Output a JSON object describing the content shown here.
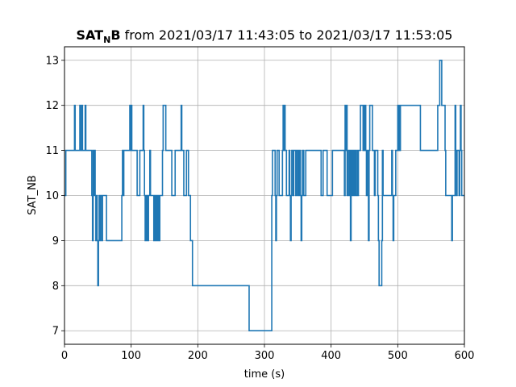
{
  "chart_data": {
    "type": "line",
    "line_style": "step",
    "title": {
      "name_main": "SAT",
      "name_sub": "N",
      "name_end": "B",
      "range": " from 2021/03/17 11:43:05 to 2021/03/17 11:53:05"
    },
    "xlabel": "time (s)",
    "ylabel": "SAT_NB",
    "xlim": [
      0,
      600
    ],
    "ylim": [
      6.7,
      13.3
    ],
    "xticks": [
      0,
      100,
      200,
      300,
      400,
      500,
      600
    ],
    "yticks": [
      7,
      8,
      9,
      10,
      11,
      12,
      13
    ],
    "grid": true,
    "line_color": "#1f77b4",
    "series": [
      {
        "points": [
          [
            0,
            10
          ],
          [
            2,
            11
          ],
          [
            14,
            11
          ],
          [
            15,
            12
          ],
          [
            16,
            11
          ],
          [
            22,
            11
          ],
          [
            23,
            12
          ],
          [
            24,
            11
          ],
          [
            26,
            12
          ],
          [
            27,
            11
          ],
          [
            30,
            11
          ],
          [
            31,
            12
          ],
          [
            32,
            11
          ],
          [
            40,
            11
          ],
          [
            41,
            10
          ],
          [
            42,
            9
          ],
          [
            43,
            11
          ],
          [
            44,
            10
          ],
          [
            45,
            11
          ],
          [
            46,
            10
          ],
          [
            47,
            9
          ],
          [
            48,
            10
          ],
          [
            49,
            9
          ],
          [
            50,
            8
          ],
          [
            51,
            9
          ],
          [
            52,
            10
          ],
          [
            53,
            9
          ],
          [
            54,
            10
          ],
          [
            56,
            9
          ],
          [
            57,
            10
          ],
          [
            62,
            10
          ],
          [
            63,
            9
          ],
          [
            85,
            9
          ],
          [
            86,
            10
          ],
          [
            87,
            11
          ],
          [
            88,
            10
          ],
          [
            89,
            11
          ],
          [
            97,
            11
          ],
          [
            98,
            12
          ],
          [
            99,
            11
          ],
          [
            100,
            12
          ],
          [
            101,
            11
          ],
          [
            108,
            11
          ],
          [
            109,
            10
          ],
          [
            112,
            10
          ],
          [
            113,
            11
          ],
          [
            117,
            11
          ],
          [
            118,
            12
          ],
          [
            119,
            11
          ],
          [
            120,
            10
          ],
          [
            121,
            9
          ],
          [
            122,
            10
          ],
          [
            123,
            9
          ],
          [
            124,
            10
          ],
          [
            125,
            9
          ],
          [
            126,
            10
          ],
          [
            128,
            11
          ],
          [
            129,
            10
          ],
          [
            133,
            10
          ],
          [
            134,
            9
          ],
          [
            135,
            10
          ],
          [
            136,
            9
          ],
          [
            137,
            10
          ],
          [
            138,
            9
          ],
          [
            139,
            10
          ],
          [
            140,
            9
          ],
          [
            141,
            10
          ],
          [
            142,
            9
          ],
          [
            143,
            10
          ],
          [
            146,
            10
          ],
          [
            147,
            11
          ],
          [
            148,
            12
          ],
          [
            151,
            12
          ],
          [
            152,
            11
          ],
          [
            160,
            11
          ],
          [
            161,
            10
          ],
          [
            165,
            10
          ],
          [
            166,
            11
          ],
          [
            174,
            11
          ],
          [
            175,
            12
          ],
          [
            176,
            11
          ],
          [
            178,
            11
          ],
          [
            179,
            10
          ],
          [
            182,
            10
          ],
          [
            183,
            11
          ],
          [
            185,
            11
          ],
          [
            186,
            10
          ],
          [
            188,
            10
          ],
          [
            189,
            9
          ],
          [
            191,
            9
          ],
          [
            192,
            8
          ],
          [
            276,
            8
          ],
          [
            277,
            7
          ],
          [
            310,
            7
          ],
          [
            311,
            10
          ],
          [
            312,
            11
          ],
          [
            315,
            11
          ],
          [
            316,
            10
          ],
          [
            317,
            9
          ],
          [
            318,
            10
          ],
          [
            319,
            11
          ],
          [
            321,
            11
          ],
          [
            322,
            10
          ],
          [
            326,
            10
          ],
          [
            327,
            11
          ],
          [
            328,
            12
          ],
          [
            329,
            11
          ],
          [
            330,
            12
          ],
          [
            331,
            11
          ],
          [
            333,
            10
          ],
          [
            336,
            10
          ],
          [
            337,
            11
          ],
          [
            338,
            10
          ],
          [
            339,
            9
          ],
          [
            340,
            10
          ],
          [
            341,
            11
          ],
          [
            343,
            10
          ],
          [
            344,
            11
          ],
          [
            346,
            11
          ],
          [
            347,
            10
          ],
          [
            348,
            11
          ],
          [
            350,
            10
          ],
          [
            351,
            11
          ],
          [
            352,
            10
          ],
          [
            353,
            11
          ],
          [
            354,
            10
          ],
          [
            355,
            9
          ],
          [
            356,
            10
          ],
          [
            357,
            11
          ],
          [
            359,
            10
          ],
          [
            361,
            10
          ],
          [
            362,
            11
          ],
          [
            384,
            11
          ],
          [
            385,
            10
          ],
          [
            387,
            10
          ],
          [
            388,
            11
          ],
          [
            393,
            11
          ],
          [
            394,
            10
          ],
          [
            401,
            10
          ],
          [
            402,
            11
          ],
          [
            419,
            11
          ],
          [
            420,
            10
          ],
          [
            421,
            12
          ],
          [
            422,
            11
          ],
          [
            423,
            12
          ],
          [
            424,
            10
          ],
          [
            425,
            11
          ],
          [
            426,
            10
          ],
          [
            428,
            11
          ],
          [
            429,
            9
          ],
          [
            430,
            11
          ],
          [
            431,
            10
          ],
          [
            432,
            11
          ],
          [
            433,
            10
          ],
          [
            434,
            11
          ],
          [
            435,
            10
          ],
          [
            436,
            11
          ],
          [
            437,
            10
          ],
          [
            439,
            11
          ],
          [
            440,
            10
          ],
          [
            441,
            11
          ],
          [
            443,
            11
          ],
          [
            444,
            12
          ],
          [
            447,
            12
          ],
          [
            448,
            11
          ],
          [
            449,
            12
          ],
          [
            450,
            11
          ],
          [
            451,
            12
          ],
          [
            452,
            11
          ],
          [
            453,
            10
          ],
          [
            454,
            11
          ],
          [
            455,
            10
          ],
          [
            456,
            9
          ],
          [
            457,
            11
          ],
          [
            458,
            12
          ],
          [
            461,
            12
          ],
          [
            462,
            11
          ],
          [
            464,
            11
          ],
          [
            465,
            10
          ],
          [
            466,
            11
          ],
          [
            469,
            11
          ],
          [
            470,
            10
          ],
          [
            471,
            9
          ],
          [
            472,
            8
          ],
          [
            475,
            8
          ],
          [
            476,
            9
          ],
          [
            477,
            11
          ],
          [
            478,
            10
          ],
          [
            490,
            10
          ],
          [
            491,
            11
          ],
          [
            492,
            10
          ],
          [
            493,
            9
          ],
          [
            494,
            10
          ],
          [
            496,
            10
          ],
          [
            497,
            11
          ],
          [
            499,
            11
          ],
          [
            500,
            12
          ],
          [
            501,
            11
          ],
          [
            502,
            12
          ],
          [
            503,
            11
          ],
          [
            504,
            12
          ],
          [
            533,
            12
          ],
          [
            534,
            11
          ],
          [
            559,
            11
          ],
          [
            560,
            12
          ],
          [
            562,
            12
          ],
          [
            563,
            13
          ],
          [
            565,
            13
          ],
          [
            566,
            12
          ],
          [
            570,
            12
          ],
          [
            571,
            11
          ],
          [
            572,
            10
          ],
          [
            580,
            10
          ],
          [
            581,
            9
          ],
          [
            582,
            10
          ],
          [
            585,
            10
          ],
          [
            586,
            12
          ],
          [
            587,
            11
          ],
          [
            588,
            10
          ],
          [
            589,
            11
          ],
          [
            591,
            11
          ],
          [
            592,
            10
          ],
          [
            593,
            11
          ],
          [
            594,
            12
          ],
          [
            595,
            11
          ],
          [
            596,
            10
          ],
          [
            598,
            10
          ],
          [
            600,
            10
          ]
        ]
      }
    ]
  }
}
